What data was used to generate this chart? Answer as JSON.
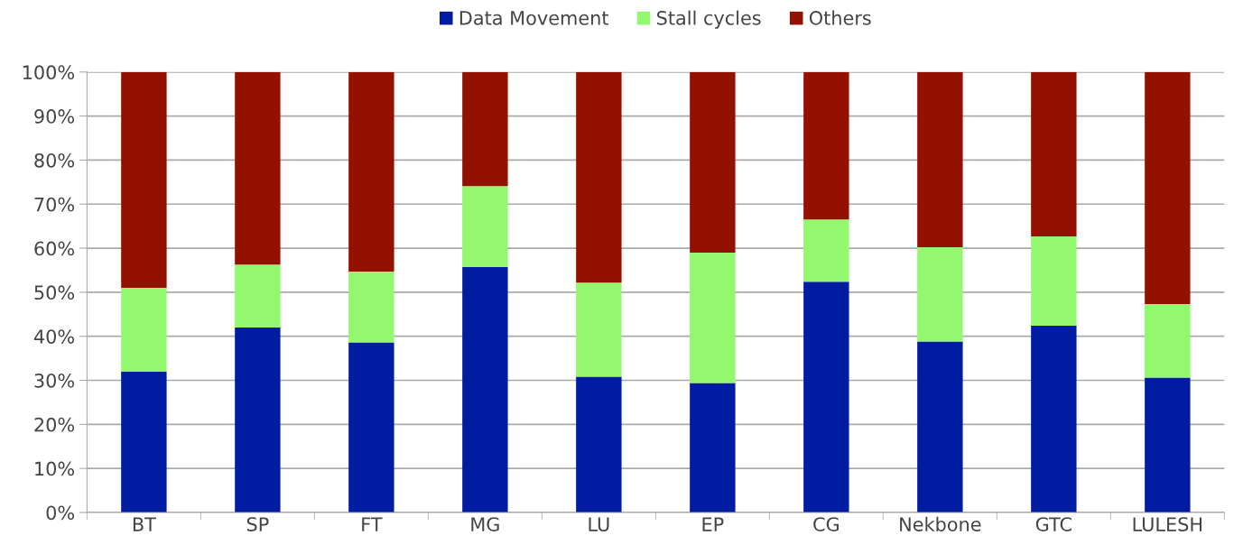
{
  "chart_data": {
    "type": "bar",
    "stacked": true,
    "categories": [
      "BT",
      "SP",
      "FT",
      "MG",
      "LU",
      "EP",
      "CG",
      "Nekbone",
      "GTC",
      "LULESH"
    ],
    "series": [
      {
        "name": "Data Movement",
        "color": "#001ca0",
        "values": [
          32,
          42,
          38.6,
          55.7,
          30.8,
          29.4,
          52.4,
          38.8,
          42.4,
          30.6
        ]
      },
      {
        "name": "Stall cycles",
        "color": "#94f770",
        "values": [
          19,
          14.3,
          16.1,
          18.4,
          21.4,
          29.6,
          14.1,
          21.4,
          20.3,
          16.7
        ]
      },
      {
        "name": "Others",
        "color": "#931100",
        "values": [
          49,
          43.7,
          45.3,
          25.9,
          47.8,
          41,
          33.5,
          39.8,
          37.3,
          52.7
        ]
      }
    ],
    "ylim": [
      0,
      100
    ],
    "yticks": [
      {
        "value": 0,
        "label": "0%"
      },
      {
        "value": 10,
        "label": "10%"
      },
      {
        "value": 20,
        "label": "20%"
      },
      {
        "value": 30,
        "label": "30%"
      },
      {
        "value": 40,
        "label": "40%"
      },
      {
        "value": 50,
        "label": "50%"
      },
      {
        "value": 60,
        "label": "60%"
      },
      {
        "value": 70,
        "label": "70%"
      },
      {
        "value": 80,
        "label": "80%"
      },
      {
        "value": 90,
        "label": "90%"
      },
      {
        "value": 100,
        "label": "100%"
      }
    ],
    "grid": "y",
    "legend": "top"
  }
}
